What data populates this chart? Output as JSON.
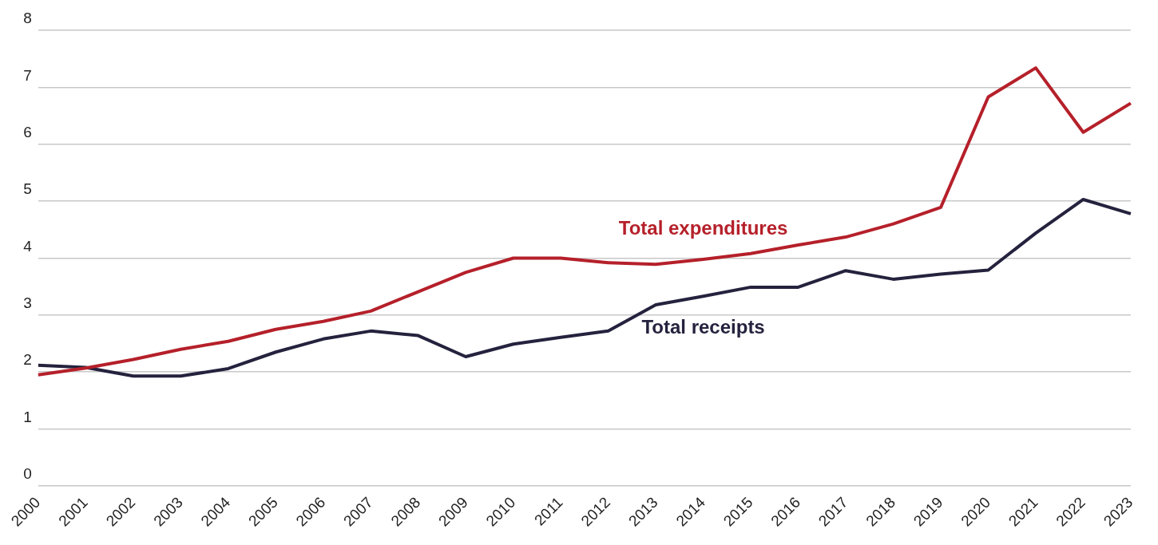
{
  "chart_data": {
    "type": "line",
    "categories": [
      "2000",
      "2001",
      "2002",
      "2003",
      "2004",
      "2005",
      "2006",
      "2007",
      "2008",
      "2009",
      "2010",
      "2011",
      "2012",
      "2013",
      "2014",
      "2015",
      "2016",
      "2017",
      "2018",
      "2019",
      "2020",
      "2021",
      "2022",
      "2023"
    ],
    "series": [
      {
        "name": "Total expenditures",
        "color": "#b5202a",
        "values": [
          1.95,
          2.07,
          2.22,
          2.4,
          2.54,
          2.75,
          2.89,
          3.07,
          3.41,
          3.75,
          4.0,
          4.0,
          3.92,
          3.89,
          3.98,
          4.08,
          4.23,
          4.37,
          4.6,
          4.89,
          6.83,
          7.34,
          6.21,
          6.72
        ]
      },
      {
        "name": "Total receipts",
        "color": "#24223d",
        "values": [
          2.12,
          2.08,
          1.93,
          1.93,
          2.06,
          2.35,
          2.58,
          2.72,
          2.64,
          2.27,
          2.49,
          2.61,
          2.72,
          3.18,
          3.33,
          3.49,
          3.49,
          3.78,
          3.63,
          3.72,
          3.79,
          4.44,
          5.03,
          4.78
        ]
      }
    ],
    "ylim": [
      0,
      8
    ],
    "yticks": [
      0,
      1,
      2,
      3,
      4,
      5,
      6,
      7,
      8
    ],
    "grid": "y",
    "legend": false,
    "marker": "none",
    "line_style": "solid"
  }
}
